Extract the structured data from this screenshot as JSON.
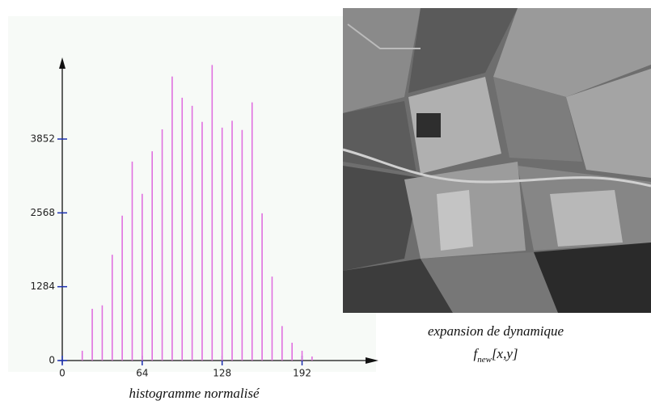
{
  "chart_data": {
    "type": "stem",
    "xlabel": "histogramme normalisé",
    "x": [
      16,
      24,
      32,
      40,
      48,
      56,
      64,
      72,
      80,
      88,
      96,
      104,
      112,
      120,
      128,
      136,
      144,
      152,
      160,
      168,
      176,
      184,
      192,
      200
    ],
    "values": [
      170,
      900,
      960,
      1840,
      2520,
      3460,
      2900,
      3640,
      4020,
      4940,
      4570,
      4430,
      4150,
      5140,
      4050,
      4170,
      4010,
      4490,
      2560,
      1460,
      600,
      310,
      170,
      70
    ],
    "color": "#e070e0",
    "xlim": [
      0,
      248
    ],
    "ylim": [
      0,
      5300
    ],
    "xticks": [
      0,
      64,
      128,
      192
    ],
    "yticks": [
      0,
      1284,
      2568,
      3852
    ]
  },
  "image": {
    "caption": "expansion de dynamique",
    "formula": {
      "base": "f",
      "subscript": "new",
      "rest": "[x,y]"
    }
  }
}
